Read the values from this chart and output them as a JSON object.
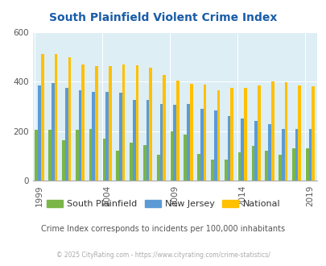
{
  "title": "South Plainfield Violent Crime Index",
  "valid_years": [
    1999,
    2000,
    2001,
    2002,
    2003,
    2004,
    2005,
    2006,
    2007,
    2008,
    2009,
    2010,
    2011,
    2012,
    2013,
    2014,
    2015,
    2016,
    2017,
    2018,
    2019
  ],
  "sp_vals": [
    205,
    205,
    163,
    205,
    210,
    170,
    120,
    155,
    145,
    105,
    200,
    185,
    110,
    85,
    85,
    115,
    140,
    120,
    105,
    130,
    130
  ],
  "nj_vals": [
    385,
    395,
    375,
    365,
    358,
    358,
    355,
    325,
    325,
    310,
    305,
    310,
    290,
    285,
    262,
    252,
    243,
    230,
    210,
    210,
    210
  ],
  "nat_vals": [
    510,
    510,
    497,
    470,
    462,
    463,
    470,
    465,
    455,
    428,
    405,
    390,
    388,
    365,
    375,
    375,
    385,
    400,
    397,
    383,
    380
  ],
  "sp_color": "#7ab648",
  "nj_color": "#5b9bd5",
  "nat_color": "#ffc000",
  "plot_bg": "#ddeef5",
  "title_color": "#1a5ca8",
  "ylim": [
    0,
    600
  ],
  "yticks": [
    0,
    200,
    400,
    600
  ],
  "subtitle": "Crime Index corresponds to incidents per 100,000 inhabitants",
  "footer": "© 2025 CityRating.com - https://www.cityrating.com/crime-statistics/",
  "legend_labels": [
    "South Plainfield",
    "New Jersey",
    "National"
  ],
  "bar_width": 0.22,
  "xlabel_years": [
    1999,
    2004,
    2009,
    2014,
    2019
  ]
}
